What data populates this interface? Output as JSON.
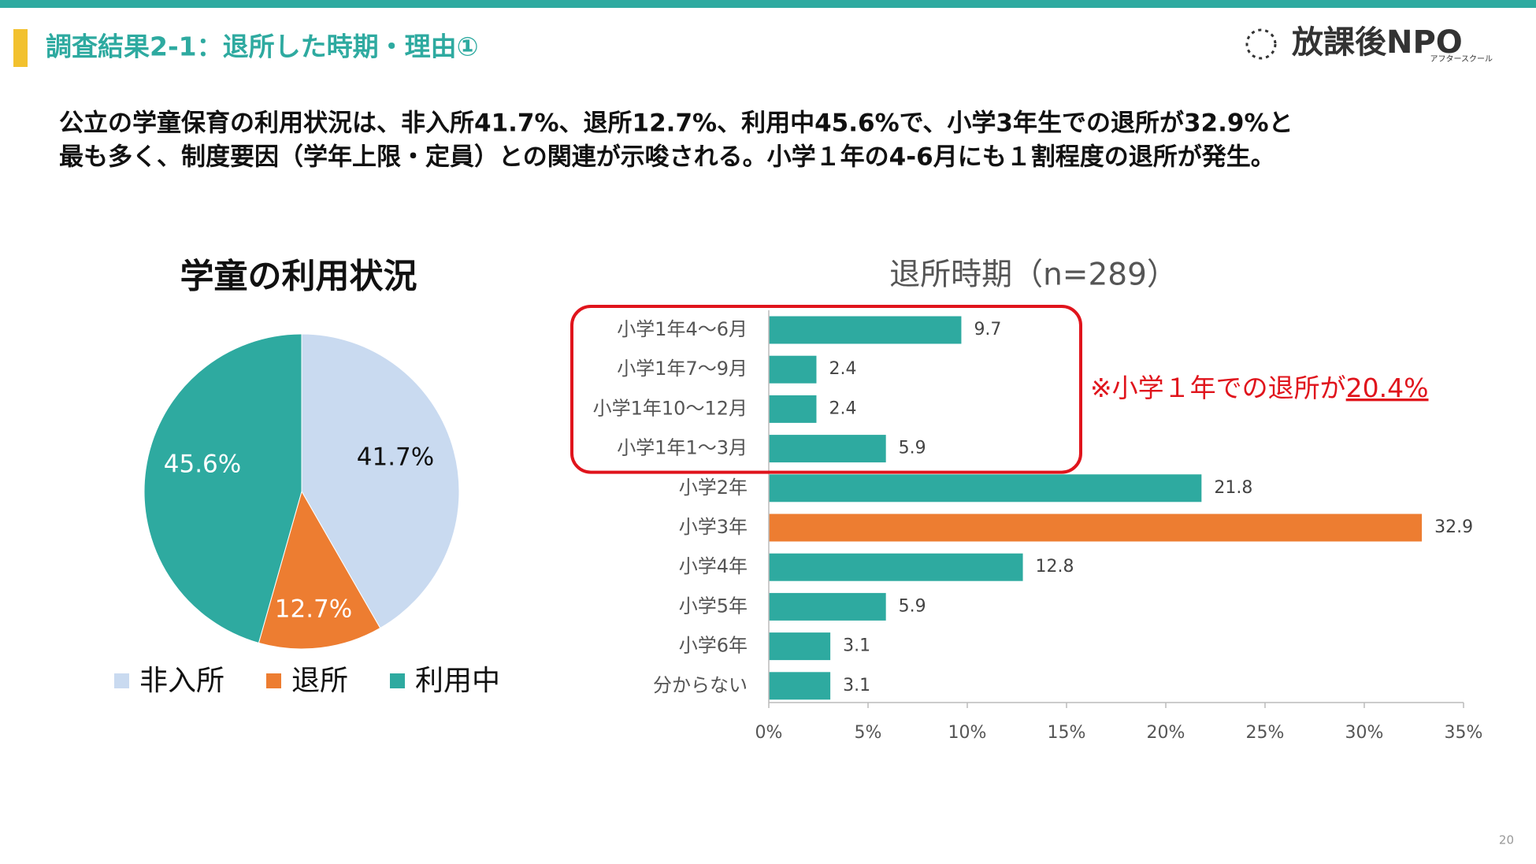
{
  "header": {
    "title": "調査結果2-1：退所した時期・理由①",
    "logo": "放課後NPO",
    "logo_sub": "アフタースクール"
  },
  "summary": [
    "公立の学童保育の利用状況は、非入所41.7%、退所12.7%、利用中45.6%で、小学3年生での退所が32.9%と",
    "最も多く、制度要因（学年上限・定員）との関連が示唆される。小学１年の4-6月にも１割程度の退所が発生。"
  ],
  "page_number": "20",
  "chart_data": [
    {
      "type": "pie",
      "title": "学童の利用状況",
      "categories": [
        "非入所",
        "退所",
        "利用中"
      ],
      "values": [
        41.7,
        12.7,
        45.6
      ],
      "value_labels": [
        "41.7%",
        "12.7%",
        "45.6%"
      ],
      "colors": [
        "#c9daf0",
        "#ed7d31",
        "#2eaaa0"
      ],
      "legend": "bottom"
    },
    {
      "type": "hbar",
      "title": "退所時期（n=289）",
      "categories": [
        "小学1年4～6月",
        "小学1年7～9月",
        "小学1年10～12月",
        "小学1年1～3月",
        "小学2年",
        "小学3年",
        "小学4年",
        "小学5年",
        "小学6年",
        "分からない"
      ],
      "values": [
        9.7,
        2.4,
        2.4,
        5.9,
        21.8,
        32.9,
        12.8,
        5.9,
        3.1,
        3.1
      ],
      "colors": [
        "#2eaaa0",
        "#2eaaa0",
        "#2eaaa0",
        "#2eaaa0",
        "#2eaaa0",
        "#ed7d31",
        "#2eaaa0",
        "#2eaaa0",
        "#2eaaa0",
        "#2eaaa0"
      ],
      "xlim": [
        0,
        35
      ],
      "xticks": [
        {
          "value": 0,
          "label": "0%"
        },
        {
          "value": 5,
          "label": "5%"
        },
        {
          "value": 10,
          "label": "10%"
        },
        {
          "value": 15,
          "label": "15%"
        },
        {
          "value": 20,
          "label": "20%"
        },
        {
          "value": 25,
          "label": "25%"
        },
        {
          "value": 30,
          "label": "30%"
        },
        {
          "value": 35,
          "label": "35%"
        }
      ],
      "grid": false,
      "annotation": {
        "text": "※小学１年での退所が",
        "highlight": "20.4%"
      }
    }
  ]
}
